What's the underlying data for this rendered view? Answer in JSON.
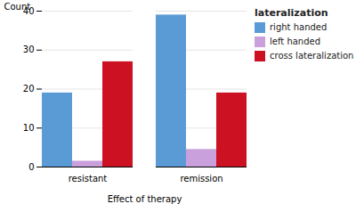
{
  "chart_data": {
    "type": "bar",
    "categories": [
      "resistant",
      "remission"
    ],
    "series": [
      {
        "name": "right handed",
        "color": "#5b9bd5",
        "values": [
          19,
          39
        ]
      },
      {
        "name": "left handed",
        "color": "#c9a0dc",
        "values": [
          1.5,
          4.5
        ]
      },
      {
        "name": "cross lateralization",
        "color": "#cc1122",
        "values": [
          27,
          19
        ]
      }
    ],
    "xlabel": "Effect of therapy",
    "ylabel": "Count",
    "ylim": [
      0,
      40
    ],
    "yticks": [
      0,
      10,
      20,
      30,
      40
    ],
    "grid": true,
    "legend": "right",
    "legend_title": "lateralization"
  }
}
